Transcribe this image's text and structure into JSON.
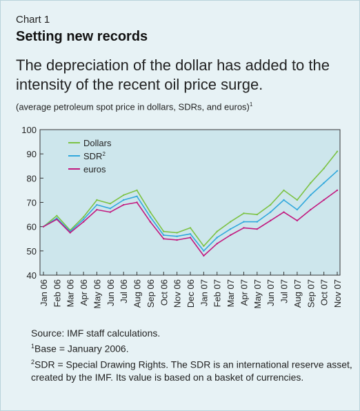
{
  "header": {
    "chart_number": "Chart 1",
    "title": "Setting new records",
    "headline": "The depreciation of the dollar has added to the intensity of the recent oil price surge.",
    "subtitle": "(average petroleum spot price in dollars, SDRs, and euros)",
    "subtitle_note_mark": "1"
  },
  "footnotes": {
    "source": "Source: IMF staff calculations.",
    "note1_mark": "1",
    "note1": "Base = January 2006.",
    "note2_mark": "2",
    "note2": "SDR = Special Drawing Rights. The SDR is an international reserve asset, created by the IMF. Its value is based on a basket of currencies."
  },
  "colors": {
    "panel_background": "#e7f2f5",
    "plot_background": "#cde6ec",
    "dollars": "#7cc243",
    "sdr": "#31a8dc",
    "euros": "#c2177e"
  },
  "chart_data": {
    "type": "line",
    "title": "",
    "xlabel": "",
    "ylabel": "",
    "ylim": [
      40,
      100
    ],
    "yticks": [
      40,
      50,
      60,
      70,
      80,
      90,
      100
    ],
    "grid": false,
    "legend_position": "top-left",
    "categories": [
      "Jan 06",
      "Feb 06",
      "Mar 06",
      "Apr 06",
      "May 06",
      "Jun 06",
      "Jul 06",
      "Aug 06",
      "Sep 06",
      "Oct 06",
      "Nov 06",
      "Dec 06",
      "Jan 07",
      "Feb 07",
      "Mar 07",
      "Apr 07",
      "May 07",
      "Jun 07",
      "Jul 07",
      "Aug 07",
      "Sep 07",
      "Oct 07",
      "Nov 07"
    ],
    "series": [
      {
        "name": "Dollars",
        "legend_note_mark": "",
        "color": "#7cc243",
        "values": [
          60,
          64.5,
          58.5,
          64,
          71,
          69.5,
          73,
          75,
          66,
          58,
          57.5,
          59.5,
          52,
          58,
          62,
          65.5,
          65,
          69,
          75,
          71,
          78,
          84,
          91
        ]
      },
      {
        "name": "SDR",
        "legend_note_mark": "2",
        "color": "#31a8dc",
        "values": [
          60,
          63.5,
          58,
          63,
          69,
          67.5,
          71,
          72.5,
          64,
          56.5,
          56,
          57,
          50,
          55.5,
          59,
          62,
          62,
          66,
          71,
          67,
          73,
          78,
          83
        ]
      },
      {
        "name": "euros",
        "legend_note_mark": "",
        "color": "#c2177e",
        "values": [
          60,
          63,
          57.5,
          62,
          67,
          66,
          69,
          70,
          62,
          55,
          54.5,
          55.5,
          48,
          53,
          56.5,
          59.5,
          59,
          62.5,
          66,
          62.5,
          67,
          71,
          75
        ]
      }
    ]
  }
}
